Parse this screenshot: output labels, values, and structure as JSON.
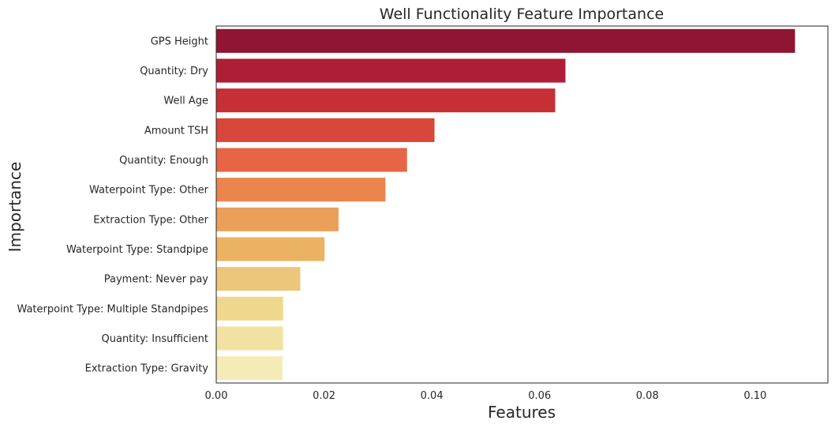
{
  "chart_data": {
    "type": "bar",
    "orientation": "horizontal",
    "title": "Well Functionality Feature Importance",
    "xlabel": "Features",
    "ylabel": "Importance",
    "xlim": [
      0,
      0.1135
    ],
    "xticks": [
      "0.00",
      "0.02",
      "0.04",
      "0.06",
      "0.08",
      "0.10"
    ],
    "xtick_values": [
      0,
      0.02,
      0.04,
      0.06,
      0.08,
      0.1
    ],
    "grid": false,
    "categories": [
      "GPS Height",
      "Quantity: Dry",
      "Well Age",
      "Amount TSH",
      "Quantity: Enough",
      "Waterpoint Type: Other",
      "Extraction Type: Other",
      "Waterpoint Type: Standpipe",
      "Payment: Never pay",
      "Waterpoint Type: Multiple Standpipes",
      "Quantity: Insufficient",
      "Extraction Type: Gravity"
    ],
    "values": [
      0.1074,
      0.0648,
      0.0629,
      0.0405,
      0.0354,
      0.0314,
      0.0227,
      0.0201,
      0.0156,
      0.0124,
      0.0124,
      0.0123
    ],
    "colors": [
      "#8f1532",
      "#ae1e36",
      "#c62f34",
      "#d9463a",
      "#e76445",
      "#ea854c",
      "#eba05a",
      "#ebb262",
      "#ecc67b",
      "#efd88d",
      "#f2e2a2",
      "#f5ebb7"
    ]
  }
}
